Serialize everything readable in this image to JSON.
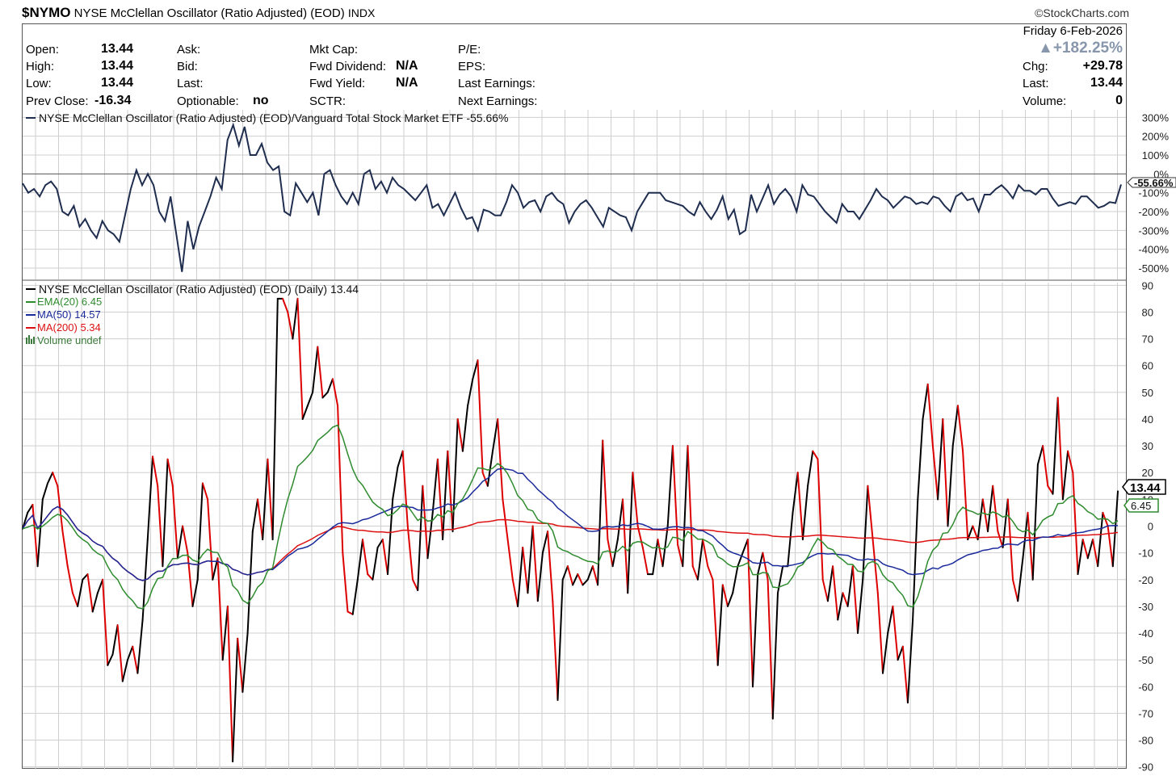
{
  "header": {
    "symbol": "$NYMO",
    "name": "NYSE McClellan Oscillator (Ratio Adjusted) (EOD)",
    "exchange": "INDX",
    "brand": "©StockCharts.com",
    "date": "Friday  6-Feb-2026",
    "change_pct": "+182.25%"
  },
  "quote": {
    "open_label": "Open:",
    "open": "13.44",
    "high_label": "High:",
    "high": "13.44",
    "low_label": "Low:",
    "low": "13.44",
    "prev_close_label": "Prev Close:",
    "prev_close": "-16.34",
    "ask_label": "Ask:",
    "bid_label": "Bid:",
    "last_label_mid": "Last:",
    "optionable_label": "Optionable:",
    "optionable": "no",
    "mkt_cap_label": "Mkt Cap:",
    "fwd_dividend_label": "Fwd Dividend:",
    "fwd_dividend": "N/A",
    "fwd_yield_label": "Fwd Yield:",
    "fwd_yield": "N/A",
    "sctr_label": "SCTR:",
    "pe_label": "P/E:",
    "eps_label": "EPS:",
    "last_earnings_label": "Last Earnings:",
    "next_earnings_label": "Next Earnings:",
    "chg_label": "Chg:",
    "chg": "+29.78",
    "last_label": "Last:",
    "last": "13.44",
    "volume_label": "Volume:",
    "volume": "0"
  },
  "colors": {
    "price": "#000000",
    "up": "#000000",
    "down": "#dd0000",
    "ema20": "#2e8b2e",
    "ma50": "#1a2a9a",
    "ma200": "#dd1111",
    "ratio": "#1f2d4f",
    "grid": "#cfcfcf",
    "volume": "#3a7a3a"
  },
  "chart_data": [
    {
      "type": "line",
      "panel": "relative-strength",
      "legend": "NYSE McClellan Oscillator (Ratio Adjusted) (EOD)/Vanguard Total Stock Market ETF -55.66%",
      "series_name": "NYSE McClellan Oscillator (Ratio Adjusted) (EOD)/Vanguard Total Stock Market ETF",
      "last_value": "-55.66%",
      "yticks": [
        "300%",
        "200%",
        "100%",
        "0%",
        "-100%",
        "-200%",
        "-300%",
        "-400%",
        "-500%"
      ],
      "yticks_values": [
        300,
        200,
        100,
        0,
        -100,
        -200,
        -300,
        -400,
        -500
      ],
      "ylim": [
        -560,
        340
      ],
      "values": [
        -50,
        -100,
        -80,
        -120,
        -60,
        -40,
        -80,
        -200,
        -220,
        -170,
        -280,
        -240,
        -300,
        -340,
        -250,
        -300,
        -320,
        -360,
        -220,
        -80,
        20,
        -60,
        0,
        -60,
        -200,
        -250,
        -120,
        -320,
        -520,
        -250,
        -400,
        -280,
        -200,
        -120,
        -20,
        -80,
        180,
        260,
        150,
        250,
        100,
        100,
        160,
        60,
        20,
        40,
        -200,
        -220,
        -50,
        -100,
        -150,
        -100,
        -220,
        0,
        20,
        -60,
        -120,
        -160,
        -100,
        -160,
        0,
        20,
        -80,
        -40,
        -100,
        -20,
        -60,
        -80,
        -110,
        -140,
        -100,
        -60,
        -180,
        -160,
        -220,
        -160,
        -100,
        -180,
        -240,
        -230,
        -300,
        -190,
        -200,
        -220,
        -220,
        -150,
        -60,
        -100,
        -180,
        -150,
        -140,
        -200,
        -120,
        -100,
        -140,
        -160,
        -260,
        -200,
        -160,
        -140,
        -180,
        -230,
        -280,
        -180,
        -200,
        -220,
        -230,
        -300,
        -200,
        -150,
        -100,
        -100,
        -100,
        -140,
        -150,
        -160,
        -170,
        -200,
        -220,
        -150,
        -200,
        -240,
        -190,
        -120,
        -240,
        -190,
        -320,
        -300,
        -110,
        -200,
        -130,
        -60,
        -160,
        -110,
        -80,
        -120,
        -200,
        -60,
        -110,
        -120,
        -160,
        -200,
        -230,
        -260,
        -160,
        -200,
        -200,
        -240,
        -190,
        -140,
        -80,
        -120,
        -140,
        -180,
        -150,
        -120,
        -130,
        -160,
        -150,
        -160,
        -120,
        -130,
        -170,
        -200,
        -120,
        -100,
        -140,
        -130,
        -200,
        -110,
        -110,
        -80,
        -60,
        -90,
        -130,
        -60,
        -90,
        -90,
        -110,
        -80,
        -80,
        -130,
        -170,
        -160,
        -150,
        -160,
        -120,
        -120,
        -150,
        -180,
        -170,
        -150,
        -155,
        -56
      ]
    },
    {
      "type": "line",
      "panel": "price",
      "title": "NYSE McClellan Oscillator (Ratio Adjusted) (EOD) (Daily) 13.44",
      "legend": [
        {
          "name": "EMA(20) 6.45",
          "color_key": "ema20"
        },
        {
          "name": "MA(50) 14.57",
          "color_key": "ma50"
        },
        {
          "name": "MA(200) 5.34",
          "color_key": "ma200"
        },
        {
          "name": "Volume undef",
          "color_key": "volume"
        }
      ],
      "yticks": [
        "90",
        "80",
        "70",
        "60",
        "50",
        "40",
        "30",
        "20",
        "10",
        "0",
        "-10",
        "-20",
        "-30",
        "-40",
        "-50",
        "-60",
        "-70",
        "-80",
        "-90"
      ],
      "ylim": [
        -91,
        91
      ],
      "last_value_label": "13.44",
      "ema_value_label": "6.45",
      "values": [
        -1,
        5,
        8,
        -15,
        10,
        16,
        20,
        15,
        -2,
        -15,
        -25,
        -30,
        -20,
        -18,
        -32,
        -25,
        -20,
        -52,
        -48,
        -37,
        -58,
        -50,
        -45,
        -55,
        -35,
        -5,
        26,
        15,
        -15,
        25,
        15,
        -12,
        0,
        -10,
        -30,
        -20,
        16,
        10,
        -20,
        -12,
        -50,
        -30,
        -88,
        -42,
        -62,
        -40,
        -2,
        10,
        -5,
        25,
        -5,
        85,
        85,
        80,
        70,
        85,
        40,
        45,
        50,
        67,
        48,
        50,
        55,
        45,
        -10,
        -32,
        -33,
        -20,
        -5,
        -18,
        -20,
        -8,
        -5,
        -18,
        10,
        22,
        28,
        0,
        -20,
        -24,
        15,
        -12,
        5,
        25,
        -5,
        28,
        -2,
        40,
        28,
        45,
        55,
        62,
        20,
        15,
        28,
        40,
        10,
        -5,
        -20,
        -30,
        -8,
        -25,
        0,
        -28,
        -10,
        -2,
        -28,
        -65,
        -20,
        -15,
        -22,
        -18,
        -22,
        -20,
        -15,
        -22,
        32,
        -5,
        -15,
        -5,
        10,
        -25,
        20,
        0,
        -8,
        -18,
        -18,
        -5,
        -15,
        0,
        30,
        -7,
        -15,
        30,
        -15,
        -20,
        -5,
        -15,
        -20,
        -52,
        -22,
        -30,
        -25,
        -15,
        -10,
        -5,
        -60,
        -18,
        -10,
        -20,
        -72,
        -25,
        -15,
        -15,
        5,
        20,
        -5,
        15,
        28,
        25,
        -20,
        -28,
        -15,
        -35,
        -25,
        -30,
        -15,
        -40,
        -20,
        15,
        -5,
        -25,
        -55,
        -40,
        -30,
        -50,
        -45,
        -66,
        -35,
        10,
        40,
        53,
        30,
        10,
        40,
        0,
        30,
        45,
        28,
        -5,
        0,
        -5,
        10,
        -2,
        15,
        -2,
        -8,
        10,
        -20,
        -28,
        -12,
        5,
        -20,
        23,
        30,
        15,
        12,
        48,
        10,
        28,
        20,
        -18,
        -5,
        -12,
        -5,
        -15,
        5,
        0,
        -15,
        13
      ]
    }
  ]
}
